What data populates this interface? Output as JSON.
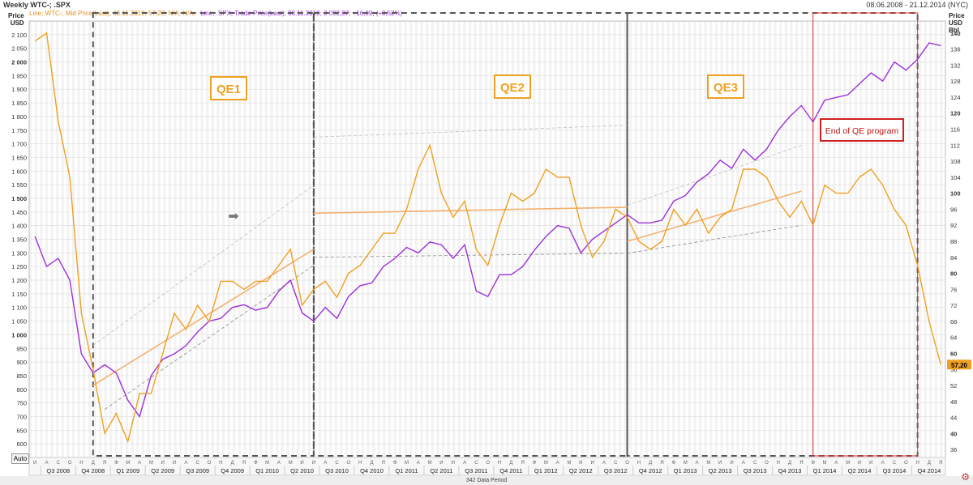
{
  "window": {
    "title": "Weekly WTC-; .SPX",
    "date_range": "08.06.2008 - 21.12.2014 (NYC)"
  },
  "legend": {
    "wtc_text": "Line; WTC-; Mid Price(Last); 08.11.2019; 57,20; N/A; N/A;",
    "spx_text": "Line; .SPX; Trade Price(Last); 08.11.2019; 3 092,87; +16,09; (+0,52%)"
  },
  "axes": {
    "left_title_1": "Price",
    "left_title_2": "USD",
    "right_title_1": "Price",
    "right_title_2": "USD",
    "right_title_3": "Bbl",
    "left_ticks": [
      "2 100",
      "2 050",
      "2 000",
      "1 950",
      "1 900",
      "1 850",
      "1 800",
      "1 750",
      "1 700",
      "1 650",
      "1 600",
      "1 550",
      "1 500",
      "1 450",
      "1 400",
      "1 350",
      "1 300",
      "1 250",
      "1 200",
      "1 150",
      "1 100",
      "1 050",
      "1 000",
      "950",
      "900",
      "850",
      "800",
      "750",
      "700",
      "650",
      "600"
    ],
    "right_ticks": [
      "140",
      "136",
      "132",
      "128",
      "124",
      "120",
      "116",
      "112",
      "108",
      "104",
      "100",
      "96",
      "92",
      "88",
      "84",
      "80",
      "76",
      "72",
      "68",
      "64",
      "60",
      "56",
      "52",
      "48",
      "44",
      "40",
      "36"
    ],
    "quarters": [
      "Q3 2008",
      "Q4 2008",
      "Q1 2009",
      "Q2 2009",
      "Q3 2009",
      "Q4 2009",
      "Q1 2010",
      "Q2 2010",
      "Q3 2010",
      "Q4 2010",
      "Q1 2011",
      "Q2 2011",
      "Q3 2011",
      "Q4 2011",
      "Q1 2012",
      "Q2 2012",
      "Q3 2012",
      "Q4 2012",
      "Q1 2013",
      "Q2 2013",
      "Q3 2013",
      "Q4 2013",
      "Q1 2014",
      "Q2 2014",
      "Q3 2014",
      "Q4 2014"
    ],
    "months": [
      "И",
      "А",
      "С",
      "О",
      "Н",
      "Д",
      "Я",
      "Ф",
      "М",
      "А",
      "М",
      "И",
      "И",
      "А",
      "С",
      "О",
      "Н",
      "Д",
      "Я",
      "Ф",
      "М",
      "А",
      "М",
      "И",
      "И",
      "А",
      "С",
      "О",
      "Н",
      "Д",
      "Я",
      "Ф",
      "М",
      "А",
      "М",
      "И",
      "И",
      "А",
      "С",
      "О",
      "Н",
      "Д",
      "Я",
      "Ф",
      "М",
      "А",
      "М",
      "И",
      "И",
      "А",
      "С",
      "О",
      "Н",
      "Д",
      "Я",
      "Ф",
      "М",
      "А",
      "М",
      "И",
      "И",
      "А",
      "С",
      "О",
      "Н",
      "Д",
      "Я",
      "Ф",
      "М",
      "А",
      "М",
      "И",
      "И",
      "А",
      "С",
      "О",
      "Н",
      "Д",
      "Я",
      "Ф"
    ]
  },
  "annotations": {
    "qe1": "QE1",
    "qe2": "QE2",
    "qe3": "QE3",
    "end_qe": "End of QE program"
  },
  "last_price_badge": "57,20",
  "auto_label": "Auto",
  "period_label": "342 Data Period",
  "colors": {
    "spx": "#9b30d9",
    "wtc": "#f0a020",
    "trend": "#f5b070",
    "frame": "#555555",
    "end_frame": "#e03030"
  },
  "chart_data": {
    "type": "line",
    "x_start": "2008-06",
    "x_end": "2014-12",
    "series": [
      {
        "name": ".SPX",
        "axis": "left",
        "points": [
          [
            "2008-06",
            1360
          ],
          [
            "2008-07",
            1250
          ],
          [
            "2008-08",
            1280
          ],
          [
            "2008-09",
            1200
          ],
          [
            "2008-10",
            930
          ],
          [
            "2008-11",
            860
          ],
          [
            "2008-12",
            890
          ],
          [
            "2009-01",
            860
          ],
          [
            "2009-02",
            760
          ],
          [
            "2009-03",
            700
          ],
          [
            "2009-04",
            850
          ],
          [
            "2009-05",
            910
          ],
          [
            "2009-06",
            930
          ],
          [
            "2009-07",
            960
          ],
          [
            "2009-08",
            1010
          ],
          [
            "2009-09",
            1050
          ],
          [
            "2009-10",
            1060
          ],
          [
            "2009-11",
            1100
          ],
          [
            "2009-12",
            1110
          ],
          [
            "2010-01",
            1090
          ],
          [
            "2010-02",
            1100
          ],
          [
            "2010-03",
            1160
          ],
          [
            "2010-04",
            1200
          ],
          [
            "2010-05",
            1080
          ],
          [
            "2010-06",
            1050
          ],
          [
            "2010-07",
            1100
          ],
          [
            "2010-08",
            1060
          ],
          [
            "2010-09",
            1140
          ],
          [
            "2010-10",
            1180
          ],
          [
            "2010-11",
            1190
          ],
          [
            "2010-12",
            1250
          ],
          [
            "2011-01",
            1280
          ],
          [
            "2011-02",
            1320
          ],
          [
            "2011-03",
            1300
          ],
          [
            "2011-04",
            1340
          ],
          [
            "2011-05",
            1330
          ],
          [
            "2011-06",
            1280
          ],
          [
            "2011-07",
            1330
          ],
          [
            "2011-08",
            1160
          ],
          [
            "2011-09",
            1140
          ],
          [
            "2011-10",
            1220
          ],
          [
            "2011-11",
            1220
          ],
          [
            "2011-12",
            1250
          ],
          [
            "2012-01",
            1310
          ],
          [
            "2012-02",
            1360
          ],
          [
            "2012-03",
            1400
          ],
          [
            "2012-04",
            1390
          ],
          [
            "2012-05",
            1300
          ],
          [
            "2012-06",
            1350
          ],
          [
            "2012-07",
            1380
          ],
          [
            "2012-08",
            1410
          ],
          [
            "2012-09",
            1440
          ],
          [
            "2012-10",
            1410
          ],
          [
            "2012-11",
            1410
          ],
          [
            "2012-12",
            1420
          ],
          [
            "2013-01",
            1490
          ],
          [
            "2013-02",
            1510
          ],
          [
            "2013-03",
            1560
          ],
          [
            "2013-04",
            1590
          ],
          [
            "2013-05",
            1640
          ],
          [
            "2013-06",
            1610
          ],
          [
            "2013-07",
            1680
          ],
          [
            "2013-08",
            1640
          ],
          [
            "2013-09",
            1680
          ],
          [
            "2013-10",
            1750
          ],
          [
            "2013-11",
            1800
          ],
          [
            "2013-12",
            1840
          ],
          [
            "2014-01",
            1780
          ],
          [
            "2014-02",
            1860
          ],
          [
            "2014-03",
            1870
          ],
          [
            "2014-04",
            1880
          ],
          [
            "2014-05",
            1920
          ],
          [
            "2014-06",
            1960
          ],
          [
            "2014-07",
            1930
          ],
          [
            "2014-08",
            2000
          ],
          [
            "2014-09",
            1970
          ],
          [
            "2014-10",
            2010
          ],
          [
            "2014-11",
            2070
          ],
          [
            "2014-12",
            2060
          ]
        ]
      },
      {
        "name": "WTC-",
        "axis": "right",
        "points": [
          [
            "2008-06",
            138
          ],
          [
            "2008-07",
            140
          ],
          [
            "2008-08",
            118
          ],
          [
            "2008-09",
            104
          ],
          [
            "2008-10",
            70
          ],
          [
            "2008-11",
            56
          ],
          [
            "2008-12",
            40
          ],
          [
            "2009-01",
            45
          ],
          [
            "2009-02",
            38
          ],
          [
            "2009-03",
            50
          ],
          [
            "2009-04",
            50
          ],
          [
            "2009-05",
            60
          ],
          [
            "2009-06",
            70
          ],
          [
            "2009-07",
            66
          ],
          [
            "2009-08",
            72
          ],
          [
            "2009-09",
            68
          ],
          [
            "2009-10",
            78
          ],
          [
            "2009-11",
            78
          ],
          [
            "2009-12",
            76
          ],
          [
            "2010-01",
            78
          ],
          [
            "2010-02",
            78
          ],
          [
            "2010-03",
            82
          ],
          [
            "2010-04",
            86
          ],
          [
            "2010-05",
            72
          ],
          [
            "2010-06",
            76
          ],
          [
            "2010-07",
            78
          ],
          [
            "2010-08",
            74
          ],
          [
            "2010-09",
            80
          ],
          [
            "2010-10",
            82
          ],
          [
            "2010-11",
            86
          ],
          [
            "2010-12",
            90
          ],
          [
            "2011-01",
            90
          ],
          [
            "2011-02",
            96
          ],
          [
            "2011-03",
            106
          ],
          [
            "2011-04",
            112
          ],
          [
            "2011-05",
            100
          ],
          [
            "2011-06",
            94
          ],
          [
            "2011-07",
            98
          ],
          [
            "2011-08",
            86
          ],
          [
            "2011-09",
            82
          ],
          [
            "2011-10",
            92
          ],
          [
            "2011-11",
            100
          ],
          [
            "2011-12",
            98
          ],
          [
            "2012-01",
            100
          ],
          [
            "2012-02",
            106
          ],
          [
            "2012-03",
            104
          ],
          [
            "2012-04",
            104
          ],
          [
            "2012-05",
            92
          ],
          [
            "2012-06",
            84
          ],
          [
            "2012-07",
            88
          ],
          [
            "2012-08",
            96
          ],
          [
            "2012-09",
            94
          ],
          [
            "2012-10",
            88
          ],
          [
            "2012-11",
            86
          ],
          [
            "2012-12",
            88
          ],
          [
            "2013-01",
            96
          ],
          [
            "2013-02",
            92
          ],
          [
            "2013-03",
            96
          ],
          [
            "2013-04",
            90
          ],
          [
            "2013-05",
            94
          ],
          [
            "2013-06",
            96
          ],
          [
            "2013-07",
            106
          ],
          [
            "2013-08",
            106
          ],
          [
            "2013-09",
            104
          ],
          [
            "2013-10",
            98
          ],
          [
            "2013-11",
            94
          ],
          [
            "2013-12",
            98
          ],
          [
            "2014-01",
            92
          ],
          [
            "2014-02",
            102
          ],
          [
            "2014-03",
            100
          ],
          [
            "2014-04",
            100
          ],
          [
            "2014-05",
            104
          ],
          [
            "2014-06",
            106
          ],
          [
            "2014-07",
            102
          ],
          [
            "2014-08",
            96
          ],
          [
            "2014-09",
            92
          ],
          [
            "2014-10",
            82
          ],
          [
            "2014-11",
            68
          ],
          [
            "2014-12",
            57.2
          ]
        ]
      }
    ],
    "y_left_range": [
      550,
      2150
    ],
    "y_right_range": [
      34,
      143
    ],
    "grid": true,
    "regions": [
      {
        "label": "QE1",
        "start": "2008-11",
        "end": "2010-06"
      },
      {
        "label": "QE2",
        "start": "2010-06",
        "end": "2012-09"
      },
      {
        "label": "QE3",
        "start": "2012-09",
        "end": "2014-10"
      },
      {
        "label": "End of QE program",
        "start": "2014-01",
        "end": "2014-10"
      }
    ]
  }
}
